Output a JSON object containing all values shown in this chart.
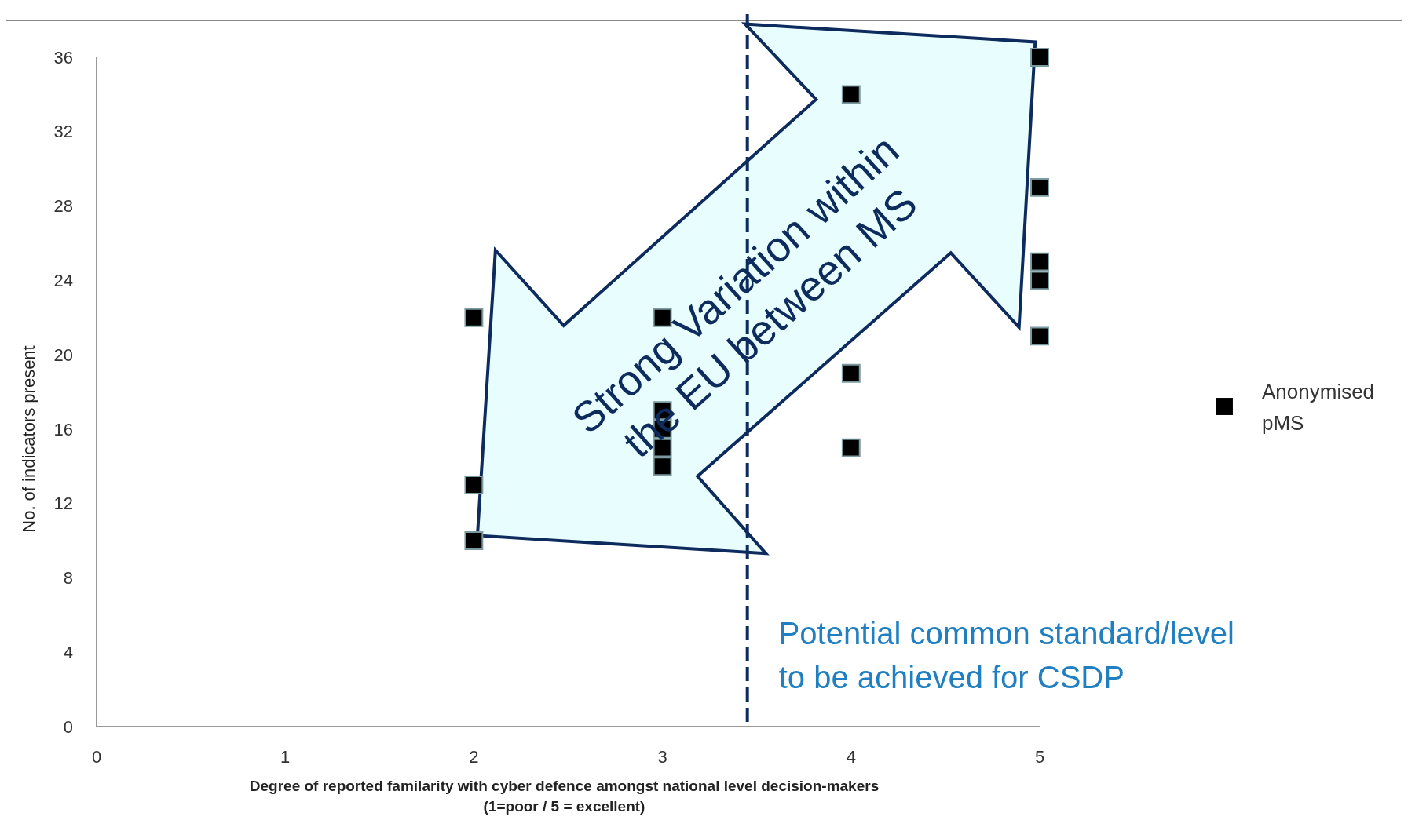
{
  "chart_data": {
    "type": "scatter",
    "xlabel": "Degree of reported familarity with cyber defence amongst national level decision-makers\n(1=poor / 5 = excellent)",
    "ylabel": "No. of indicators present",
    "series": [
      {
        "name": "Anonymised pMS",
        "color": "#000000",
        "x": [
          2,
          2,
          2,
          3,
          3,
          3,
          3,
          3,
          4,
          4,
          4,
          5,
          5,
          5,
          5,
          5
        ],
        "values": [
          22,
          13,
          10,
          22,
          17,
          16,
          15,
          14,
          34,
          19,
          15,
          36,
          29,
          25,
          24,
          21
        ]
      }
    ],
    "xlim": [
      0,
      5
    ],
    "xticks": [
      0,
      1,
      2,
      3,
      4,
      5
    ],
    "ylim": [
      0,
      36
    ],
    "yticks": [
      0,
      4,
      8,
      12,
      16,
      20,
      24,
      28,
      32,
      36
    ],
    "marker": "square",
    "legend": "right",
    "grid": false,
    "ref_lines": [
      {
        "axis": "x",
        "value": 3.45,
        "label": "Potential common standard/level\nto be achieved for CSDP",
        "color": "#0d2b5c",
        "line_style": "dashed"
      }
    ],
    "annotations": [
      "Strong Variation within\nthe EU between MS"
    ]
  }
}
